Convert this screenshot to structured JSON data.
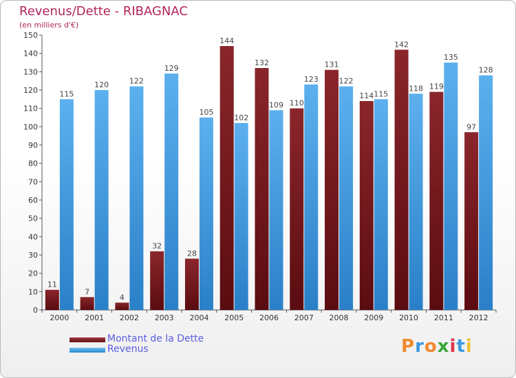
{
  "chart_data": {
    "type": "bar",
    "title": "Revenus/Dette - RIBAGNAC",
    "subtitle": "(en milliers d'€)",
    "categories": [
      "2000",
      "2001",
      "2002",
      "2003",
      "2004",
      "2005",
      "2006",
      "2007",
      "2008",
      "2009",
      "2010",
      "2011",
      "2012"
    ],
    "series": [
      {
        "name": "Montant de la Dette",
        "values": [
          11,
          7,
          4,
          32,
          28,
          144,
          132,
          110,
          131,
          114,
          142,
          119,
          97
        ]
      },
      {
        "name": "Revenus",
        "values": [
          115,
          120,
          122,
          129,
          105,
          102,
          109,
          123,
          122,
          115,
          118,
          135,
          128
        ]
      }
    ],
    "ylim": [
      0,
      150
    ],
    "ytick_step": 10,
    "grid": false,
    "legend_position": "bottom-left",
    "colors": {
      "dette": "#7b1e22",
      "revenus": "#3a9be0",
      "title": "#b0245a",
      "legend_text": "#5b5ee0"
    }
  },
  "logo_text": "Proxiti",
  "logo_colors": [
    "#f08a2e",
    "#3a9be0",
    "#f08a2e",
    "#3aa63a",
    "#e0344a",
    "#3a9be0",
    "#f0c02e"
  ]
}
